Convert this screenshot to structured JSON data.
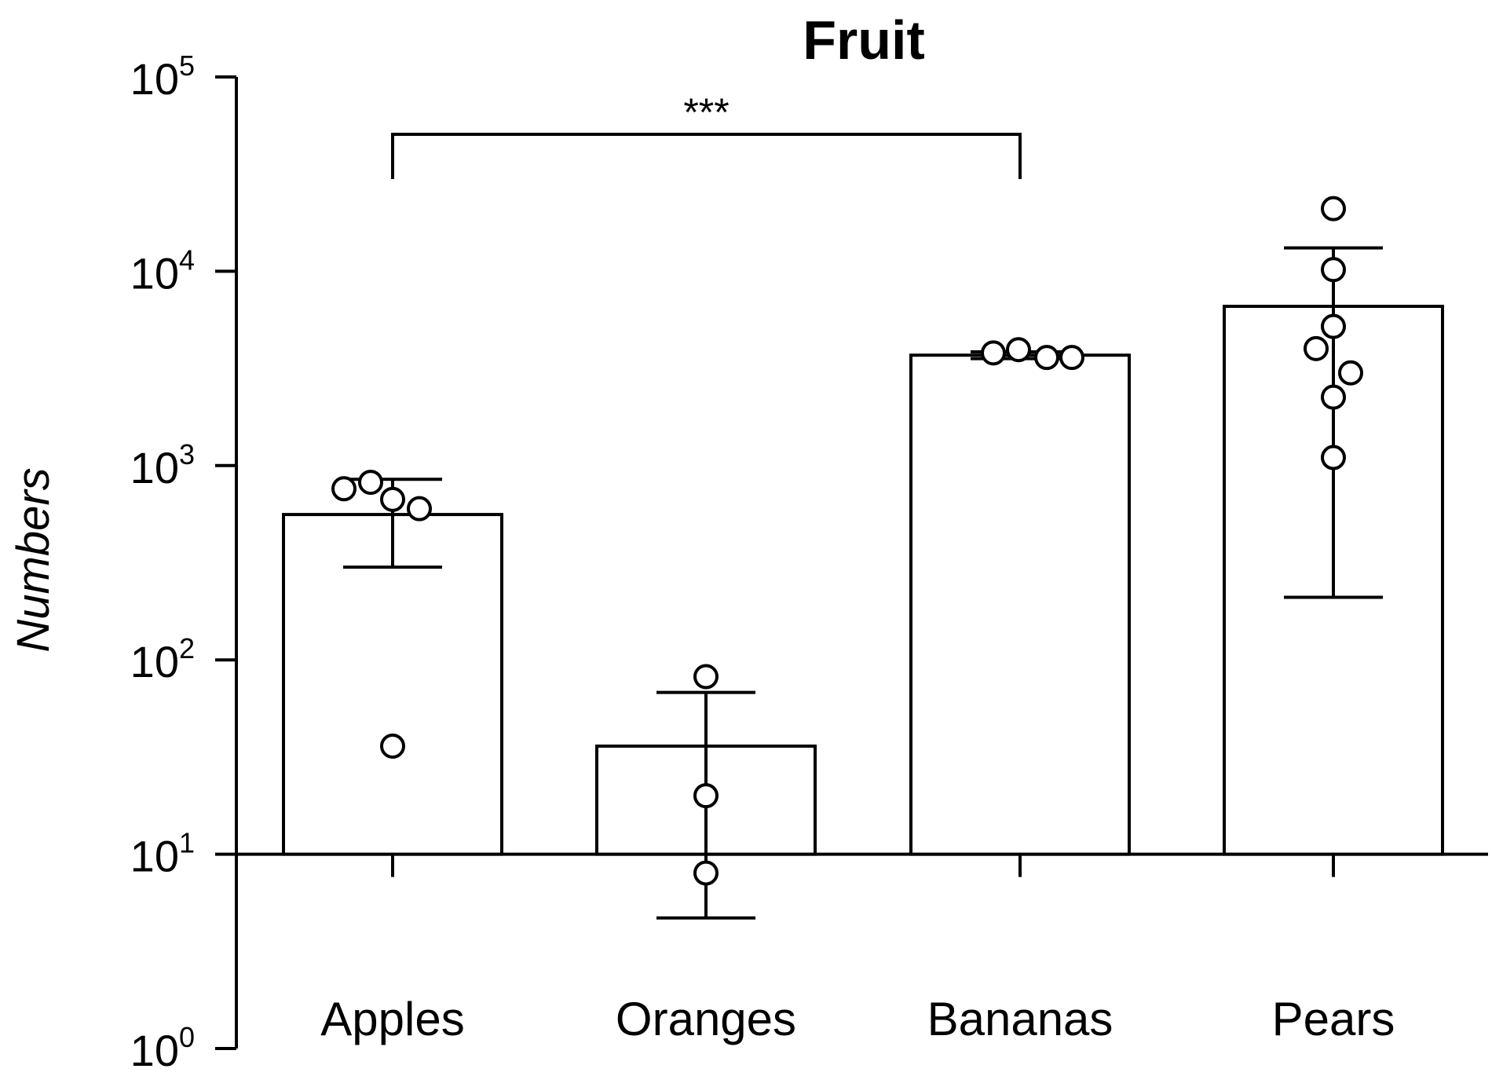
{
  "chart_data": {
    "type": "bar",
    "title": "Fruit",
    "xlabel": "",
    "ylabel": "Numbers",
    "yscale": "log",
    "ylim": [
      1,
      100000
    ],
    "y_ticks": [
      {
        "value": 1,
        "base": "10",
        "exp": "0"
      },
      {
        "value": 10,
        "base": "10",
        "exp": "1"
      },
      {
        "value": 100,
        "base": "10",
        "exp": "2"
      },
      {
        "value": 1000,
        "base": "10",
        "exp": "3"
      },
      {
        "value": 10000,
        "base": "10",
        "exp": "4"
      },
      {
        "value": 100000,
        "base": "10",
        "exp": "5"
      }
    ],
    "bar_baseline": 10,
    "categories": [
      "Apples",
      "Oranges",
      "Bananas",
      "Pears"
    ],
    "values": [
      560,
      36,
      3700,
      6600
    ],
    "error_bars": [
      {
        "low": 300,
        "high": 850
      },
      {
        "low": 4.7,
        "high": 68
      },
      {
        "low": 3550,
        "high": 3850
      },
      {
        "low": 210,
        "high": 13200
      }
    ],
    "points": [
      [
        760,
        820,
        670,
        600,
        36
      ],
      [
        82,
        20,
        8
      ],
      [
        3800,
        3600,
        3950,
        3600
      ],
      [
        21000,
        10200,
        5200,
        4000,
        3000,
        2250,
        1100
      ]
    ],
    "annotations": [
      {
        "text": "***",
        "from": "Apples",
        "to": "Bananas"
      }
    ],
    "grid": false,
    "legend": "none",
    "colors": {
      "bar_fill": "#ffffff",
      "stroke": "#000000",
      "point_fill": "#ffffff"
    }
  }
}
